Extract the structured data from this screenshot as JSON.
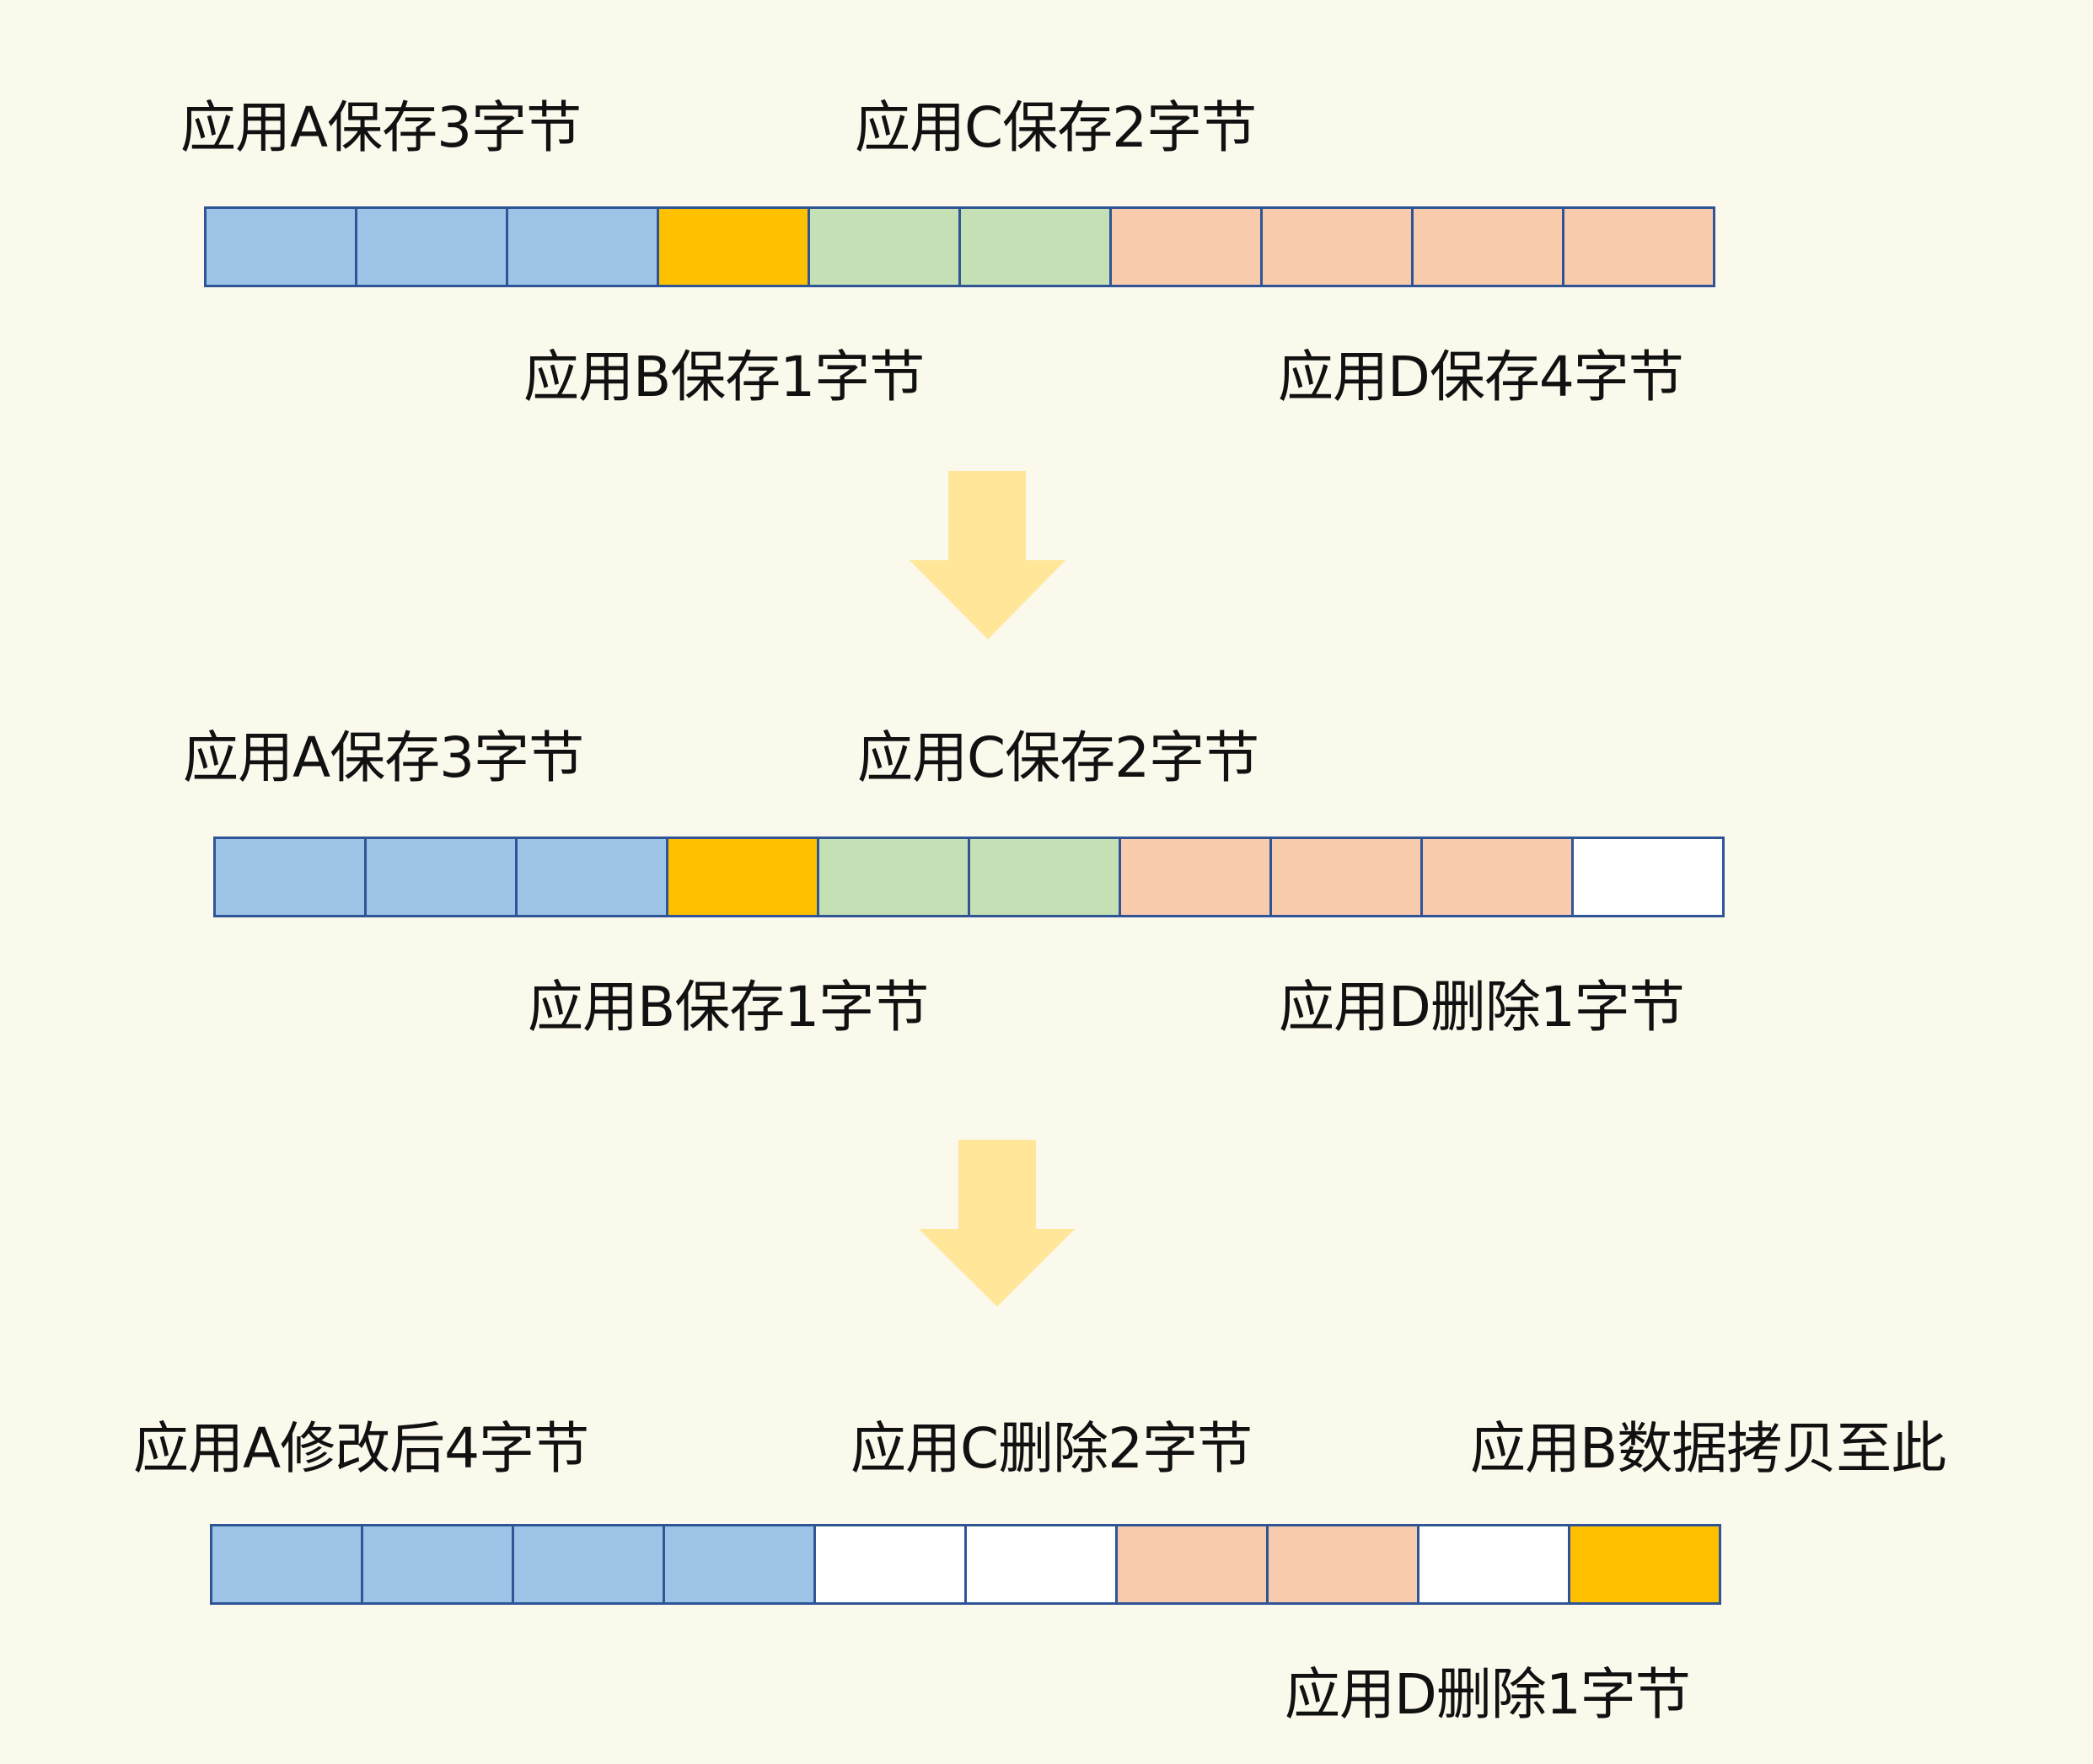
{
  "colors": {
    "background": "#FBF8EC",
    "border": "#2F5597",
    "app_a": "#9DC3E6",
    "app_b": "#FFC000",
    "app_c": "#C5E0B4",
    "app_d": "#F8CBAD",
    "free": "#FFFFFF",
    "arrow": "#FFE699"
  },
  "stages": [
    {
      "top_labels": [
        "应用A保存3字节",
        "应用C保存2字节"
      ],
      "bottom_labels": [
        "应用B保存1字节",
        "应用D保存4字节"
      ],
      "cells": [
        "app_a",
        "app_a",
        "app_a",
        "app_b",
        "app_c",
        "app_c",
        "app_d",
        "app_d",
        "app_d",
        "app_d"
      ]
    },
    {
      "top_labels": [
        "应用A保存3字节",
        "应用C保存2字节"
      ],
      "bottom_labels": [
        "应用B保存1字节",
        "应用D删除1字节"
      ],
      "cells": [
        "app_a",
        "app_a",
        "app_a",
        "app_b",
        "app_c",
        "app_c",
        "app_d",
        "app_d",
        "app_d",
        "free"
      ]
    },
    {
      "top_labels": [
        "应用A修改后4字节",
        "应用C删除2字节",
        "应用B数据拷贝至此"
      ],
      "bottom_labels": [
        "应用D删除1字节"
      ],
      "cells": [
        "app_a",
        "app_a",
        "app_a",
        "app_a",
        "free",
        "free",
        "app_d",
        "app_d",
        "free",
        "app_b"
      ]
    }
  ],
  "arrows": [
    "down-arrow",
    "down-arrow"
  ]
}
